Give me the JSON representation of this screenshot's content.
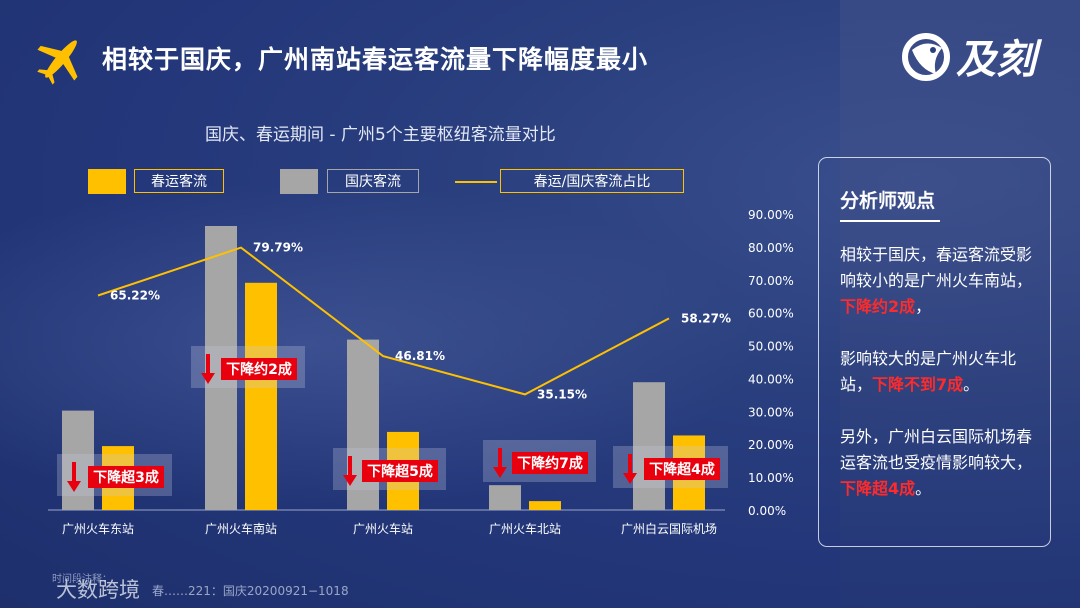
{
  "header": {
    "title": "相较于国庆，广州南站春运客流量下降幅度最小",
    "logo_text": "及刻",
    "colors": {
      "accent": "#ffc000",
      "gray_bar": "#a6a6a6",
      "background": "#23377a",
      "alert": "#e8000f"
    }
  },
  "chart_data": {
    "type": "bar",
    "title": "国庆、春运期间 - 广州5个主要枢纽客流量对比",
    "categories": [
      "广州火车东站",
      "广州火车南站",
      "广州火车站",
      "广州火车北站",
      "广州白云国际机场"
    ],
    "series": [
      {
        "name": "春运客流",
        "kind": "bar",
        "color": "#ffc000",
        "values": [
          0.18,
          0.64,
          0.22,
          0.025,
          0.21
        ]
      },
      {
        "name": "国庆客流",
        "kind": "bar",
        "color": "#a6a6a6",
        "values": [
          0.28,
          0.8,
          0.48,
          0.07,
          0.36
        ]
      },
      {
        "name": "春运/国庆客流占比",
        "kind": "line",
        "color": "#ffc000",
        "axis": "right",
        "values": [
          65.22,
          79.79,
          46.81,
          35.15,
          58.27
        ]
      }
    ],
    "line_labels": [
      "65.22%",
      "79.79%",
      "46.81%",
      "35.15%",
      "58.27%"
    ],
    "y_right": {
      "ticks": [
        "0.00%",
        "10.00%",
        "20.00%",
        "30.00%",
        "40.00%",
        "50.00%",
        "60.00%",
        "70.00%",
        "80.00%",
        "90.00%"
      ],
      "range": [
        0,
        90
      ]
    },
    "annotations": [
      "下降超3成",
      "下降约2成",
      "下降超5成",
      "下降约7成",
      "下降超4成"
    ],
    "legend": {
      "placement": "top"
    }
  },
  "panel": {
    "title": "分析师观点",
    "p1_a": "相较于国庆，春运客流受影响较小的是广州火车南站，",
    "p1_hl": "下降约2成",
    "p1_b": "，",
    "p2_a": "影响较大的是广州火车北站，",
    "p2_hl": "下降不到7成",
    "p2_b": "。",
    "p3_a": "另外，广州白云国际机场春运客流也受疫情影响较大，",
    "p3_hl": "下降超4成",
    "p3_b": "。"
  },
  "footer": {
    "note_label": "时间段注释：",
    "note": "春……221：国庆20200921−1018",
    "watermark": "大数跨境"
  }
}
